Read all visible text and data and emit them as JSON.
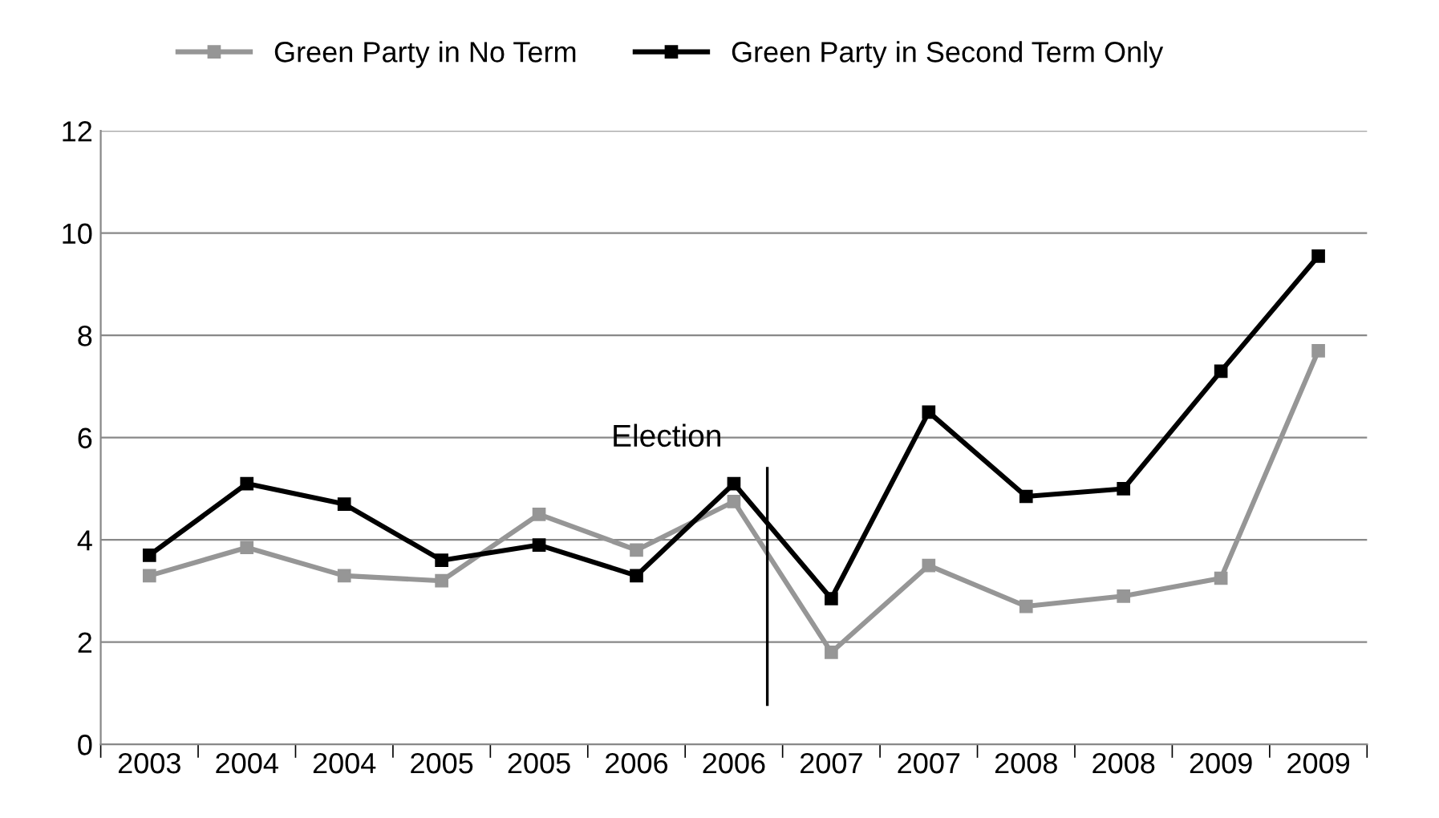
{
  "chart_data": {
    "type": "line",
    "categories": [
      "2003",
      "2004",
      "2004",
      "2005",
      "2005",
      "2006",
      "2006",
      "2007",
      "2007",
      "2008",
      "2008",
      "2009",
      "2009"
    ],
    "series": [
      {
        "name": "Green Party in No Term",
        "color": "#969696",
        "values": [
          3.3,
          3.85,
          3.3,
          3.2,
          4.5,
          3.8,
          4.75,
          1.8,
          3.5,
          2.7,
          2.9,
          3.25,
          7.7
        ]
      },
      {
        "name": "Green Party in Second Term Only",
        "color": "#000000",
        "values": [
          3.7,
          5.1,
          4.7,
          3.6,
          3.9,
          3.3,
          5.1,
          2.85,
          6.5,
          4.85,
          5.0,
          7.3,
          9.55
        ]
      }
    ],
    "ylim": [
      0,
      12
    ],
    "yticks": [
      0,
      2,
      4,
      6,
      8,
      10,
      12
    ],
    "grid": "y",
    "legend": "top",
    "marker": "square",
    "line_style": "solid",
    "annotations": [
      "Election"
    ]
  }
}
